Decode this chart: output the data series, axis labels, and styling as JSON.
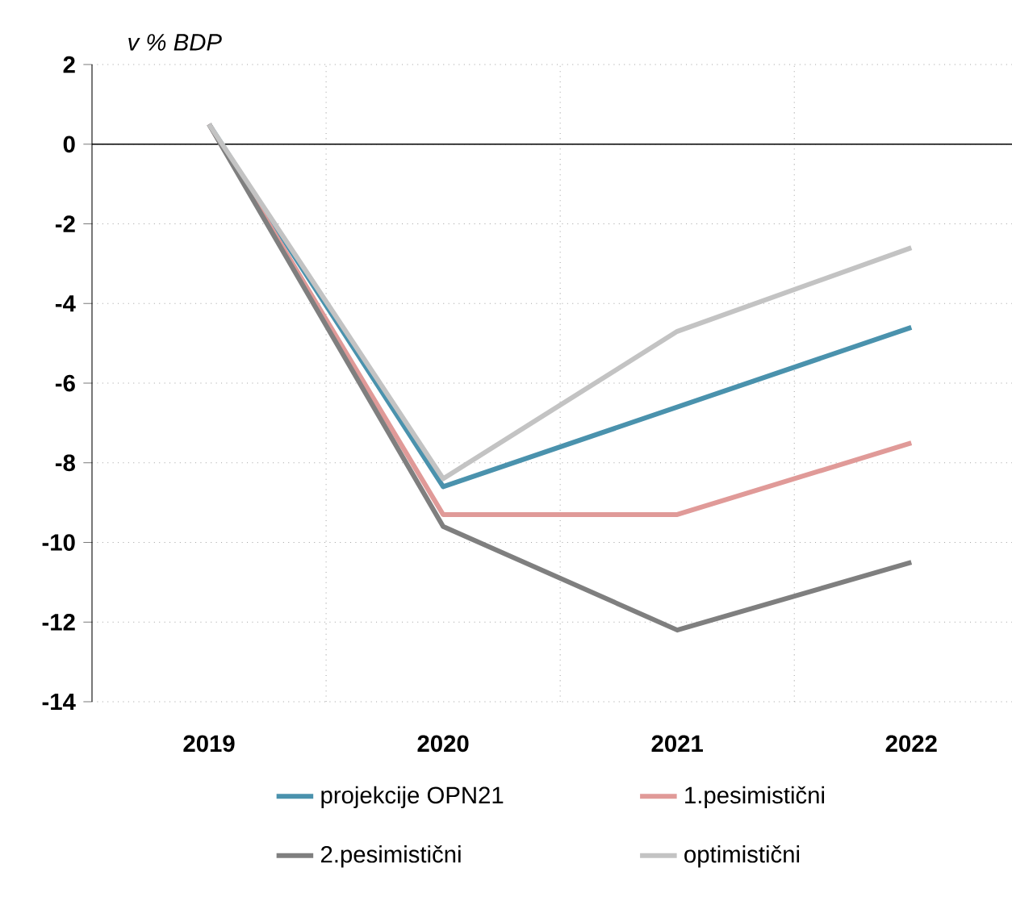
{
  "chart_data": {
    "type": "line",
    "ylabel": "v % BDP",
    "categories": [
      "2019",
      "2020",
      "2021",
      "2022"
    ],
    "series": [
      {
        "name": "projekcije OPN21",
        "color": "#4a92ad",
        "values": [
          0.5,
          -8.6,
          -6.6,
          -4.6
        ]
      },
      {
        "name": "1.pesimistični",
        "color": "#e09a98",
        "values": [
          0.5,
          -9.3,
          -9.3,
          -7.5
        ]
      },
      {
        "name": "2.pesimistični",
        "color": "#7f7f7f",
        "values": [
          0.5,
          -9.6,
          -12.2,
          -10.5
        ]
      },
      {
        "name": "optimistični",
        "color": "#c3c3c3",
        "values": [
          0.5,
          -8.4,
          -4.7,
          -2.6
        ]
      }
    ],
    "ylim": [
      -14,
      2
    ],
    "yticks": [
      -14,
      -12,
      -10,
      -8,
      -6,
      -4,
      -2,
      0,
      2
    ],
    "grid": true,
    "legend": "bottom",
    "marker": "none",
    "line_style": "solid"
  }
}
